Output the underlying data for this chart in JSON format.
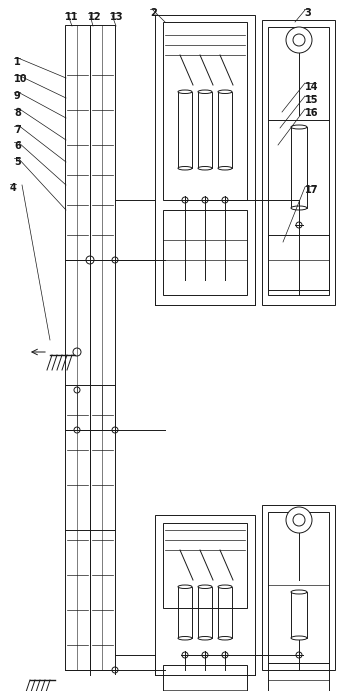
{
  "fig_width": 3.43,
  "fig_height": 6.91,
  "dpi": 100,
  "bg_color": "#ffffff",
  "lc": "#1a1a1a",
  "lw": 0.7
}
